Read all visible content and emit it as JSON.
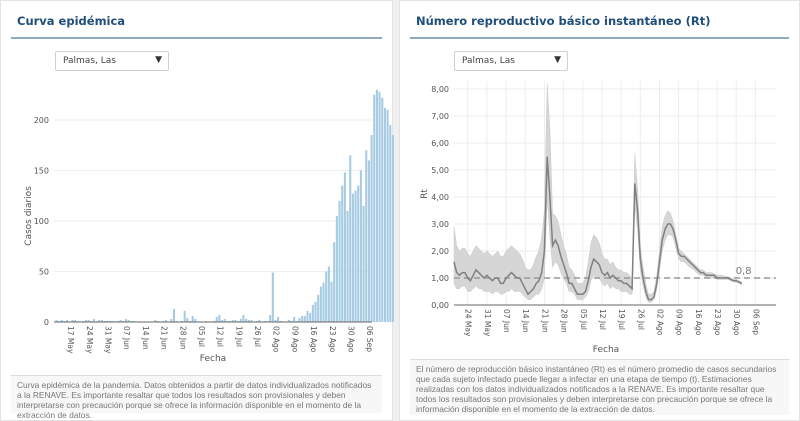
{
  "left": {
    "title": "Curva epidémica",
    "dropdown": {
      "selected": "Palmas, Las",
      "arrow": "▼"
    },
    "note": "Curva epidémica de la pandemia. Datos obtenidos a partir de datos individualizados notificados a la RENAVE. Es importante resaltar que todos los resultados son provisionales y deben interpretarse con precaución porque se ofrece la información disponible en el momento de la extracción de datos."
  },
  "right": {
    "title": "Número reproductivo básico instantáneo (Rt)",
    "dropdown": {
      "selected": "Palmas, Las",
      "arrow": "▼"
    },
    "note": "El número de reproducción básico instantáneo (Rt) es el número promedio de casos secundarios que cada sujeto infectado puede llegar a infectar en una etapa de tiempo (t). Estimaciones realizadas con los datos individualizados notificados a la RENAVE. Es importante resaltar que todos los resultados son provisionales y deben interpretarse con precaución porque se ofrece la información disponible en el momento de la extracción de datos."
  },
  "chart_data": [
    {
      "type": "bar",
      "title": "Curva epidémica",
      "xlabel": "Fecha",
      "ylabel": "Casos diarios",
      "ylim": [
        0,
        235
      ],
      "yticks": [
        0,
        50,
        100,
        150,
        200
      ],
      "xticks": [
        "17 May",
        "24 May",
        "31 May",
        "07 Jun",
        "14 Jun",
        "21 Jun",
        "28 Jun",
        "05 Jul",
        "12 Jul",
        "19 Jul",
        "26 Jul",
        "02 Ago",
        "09 Ago",
        "16 Ago",
        "23 Ago",
        "30 Ago",
        "06 Sep"
      ],
      "start_date": "12 May",
      "color": "#a6cbe3",
      "grid": true,
      "values": [
        2,
        1,
        2,
        1,
        2,
        0,
        2,
        2,
        1,
        0,
        1,
        2,
        2,
        1,
        3,
        1,
        2,
        2,
        1,
        1,
        1,
        1,
        0,
        1,
        2,
        1,
        3,
        2,
        1,
        1,
        0,
        0,
        0,
        0,
        0,
        0,
        0,
        2,
        1,
        0,
        1,
        2,
        0,
        3,
        13,
        1,
        0,
        1,
        11,
        4,
        1,
        6,
        3,
        0,
        0,
        0,
        1,
        0,
        0,
        1,
        5,
        7,
        2,
        3,
        1,
        1,
        2,
        2,
        1,
        3,
        7,
        3,
        2,
        2,
        0,
        1,
        2,
        0,
        1,
        1,
        7,
        49,
        2,
        5,
        1,
        0,
        0,
        2,
        1,
        5,
        1,
        4,
        6,
        6,
        11,
        9,
        17,
        20,
        27,
        35,
        39,
        50,
        55,
        40,
        79,
        105,
        120,
        135,
        148,
        110,
        165,
        127,
        130,
        135,
        150,
        115,
        170,
        160,
        185,
        225,
        230,
        228,
        222,
        212,
        210,
        195,
        185,
        160,
        140,
        120,
        150,
        83
      ]
    },
    {
      "type": "line",
      "title": "Número reproductivo básico instantáneo (Rt)",
      "xlabel": "Fecha",
      "ylabel": "Rt",
      "ylim": [
        0,
        8.5
      ],
      "yticks": [
        "0,00",
        "1,00",
        "2,00",
        "3,00",
        "4,00",
        "5,00",
        "6,00",
        "7,00",
        "8,00"
      ],
      "ytick_values": [
        0,
        1,
        2,
        3,
        4,
        5,
        6,
        7,
        8
      ],
      "xticks": [
        "24 May",
        "31 May",
        "07 Jun",
        "14 Jun",
        "21 Jun",
        "28 Jun",
        "05 Jul",
        "12 Jul",
        "19 Jul",
        "26 Jul",
        "02 Ago",
        "09 Ago",
        "16 Ago",
        "23 Ago",
        "30 Ago",
        "06 Sep"
      ],
      "start_date": "19 May",
      "reference_line": {
        "value": 1.0,
        "style": "dashed"
      },
      "last_value_label": "0,8",
      "series": [
        {
          "name": "Rt",
          "values": [
            1.6,
            1.2,
            1.1,
            1.2,
            1.2,
            1.0,
            0.9,
            1.1,
            1.3,
            1.2,
            1.1,
            1.0,
            1.1,
            1.0,
            0.9,
            1.0,
            1.0,
            0.8,
            0.8,
            1.0,
            1.1,
            1.2,
            1.1,
            1.0,
            1.0,
            0.8,
            0.6,
            0.4,
            0.5,
            0.6,
            0.8,
            0.9,
            1.2,
            2.0,
            5.5,
            4.0,
            2.2,
            2.4,
            2.2,
            1.8,
            1.5,
            1.2,
            0.8,
            0.8,
            0.6,
            0.4,
            0.4,
            0.4,
            0.5,
            0.9,
            1.4,
            1.7,
            1.6,
            1.5,
            1.2,
            1.1,
            1.2,
            1.0,
            1.1,
            1.0,
            0.9,
            0.9,
            0.8,
            0.8,
            0.7,
            0.6,
            4.5,
            3.5,
            1.7,
            1.0,
            0.5,
            0.2,
            0.2,
            0.3,
            0.8,
            1.6,
            2.4,
            2.8,
            3.0,
            3.0,
            2.8,
            2.4,
            1.9,
            1.8,
            1.8,
            1.7,
            1.6,
            1.5,
            1.4,
            1.3,
            1.2,
            1.2,
            1.1,
            1.1,
            1.1,
            1.1,
            1.0,
            1.0,
            1.0,
            1.0,
            1.0,
            0.95,
            0.9,
            0.9,
            0.85,
            0.8
          ]
        },
        {
          "name": "Upper CI",
          "values": [
            2.9,
            2.2,
            2.0,
            2.1,
            2.1,
            1.9,
            1.8,
            2.0,
            2.2,
            2.1,
            2.0,
            1.9,
            2.0,
            1.9,
            1.8,
            1.9,
            2.0,
            1.8,
            1.8,
            2.0,
            2.1,
            2.2,
            2.1,
            2.0,
            1.9,
            1.7,
            1.4,
            1.3,
            1.3,
            1.5,
            1.8,
            2.0,
            2.5,
            3.5,
            8.2,
            6.5,
            3.4,
            3.3,
            3.1,
            2.6,
            2.2,
            1.9,
            1.4,
            1.3,
            1.1,
            0.8,
            0.8,
            0.8,
            1.0,
            1.6,
            2.3,
            2.6,
            2.5,
            2.3,
            1.9,
            1.7,
            1.7,
            1.5,
            1.6,
            1.4,
            1.3,
            1.3,
            1.2,
            1.2,
            1.1,
            1.0,
            5.6,
            4.3,
            2.2,
            1.4,
            0.8,
            0.4,
            0.4,
            0.5,
            1.1,
            2.0,
            2.9,
            3.3,
            3.5,
            3.4,
            3.1,
            2.6,
            2.1,
            2.0,
            1.9,
            1.8,
            1.7,
            1.6,
            1.5,
            1.4,
            1.3,
            1.3,
            1.2,
            1.2,
            1.2,
            1.15,
            1.1,
            1.1,
            1.1,
            1.05,
            1.05,
            1.0,
            0.95,
            0.95,
            0.9,
            0.85
          ]
        },
        {
          "name": "Lower CI",
          "values": [
            0.8,
            0.6,
            0.6,
            0.7,
            0.7,
            0.5,
            0.5,
            0.6,
            0.7,
            0.6,
            0.6,
            0.5,
            0.5,
            0.5,
            0.4,
            0.5,
            0.5,
            0.4,
            0.4,
            0.5,
            0.5,
            0.6,
            0.5,
            0.5,
            0.5,
            0.4,
            0.3,
            0.2,
            0.2,
            0.3,
            0.4,
            0.4,
            0.6,
            1.0,
            4.0,
            2.5,
            1.4,
            1.6,
            1.5,
            1.2,
            1.0,
            0.8,
            0.5,
            0.5,
            0.4,
            0.2,
            0.2,
            0.2,
            0.3,
            0.5,
            0.9,
            1.1,
            1.0,
            1.0,
            0.8,
            0.7,
            0.8,
            0.6,
            0.7,
            0.6,
            0.6,
            0.5,
            0.5,
            0.5,
            0.4,
            0.4,
            3.7,
            2.8,
            1.3,
            0.7,
            0.3,
            0.1,
            0.1,
            0.2,
            0.6,
            1.3,
            2.0,
            2.4,
            2.6,
            2.6,
            2.5,
            2.1,
            1.7,
            1.6,
            1.6,
            1.5,
            1.4,
            1.35,
            1.25,
            1.15,
            1.1,
            1.1,
            1.0,
            1.0,
            1.0,
            1.0,
            0.95,
            0.95,
            0.95,
            0.95,
            0.95,
            0.9,
            0.85,
            0.85,
            0.8,
            0.75
          ]
        }
      ]
    }
  ]
}
